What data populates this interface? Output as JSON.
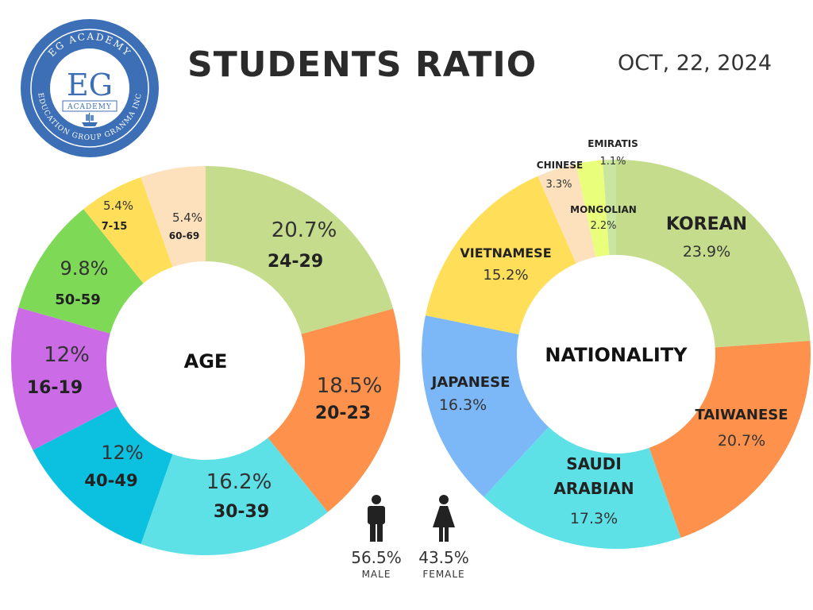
{
  "header": {
    "title": "STUDENTS RATIO",
    "date": "OCT, 22, 2024"
  },
  "logo": {
    "top_text": "EG ACADEMY",
    "monogram": "EG",
    "academy": "ACADEMY",
    "bottom_text": "EDUCATION GROUP GRANMA INC"
  },
  "gender": {
    "male": {
      "pct": "56.5%",
      "label": "MALE"
    },
    "female": {
      "pct": "43.5%",
      "label": "FEMALE"
    }
  },
  "chart_data": [
    {
      "type": "donut",
      "title": "AGE",
      "slices": [
        {
          "label": "24-29",
          "value": 20.7,
          "text": "20.7%",
          "color": "#c5dc8d"
        },
        {
          "label": "20-23",
          "value": 18.5,
          "text": "18.5%",
          "color": "#fe914b"
        },
        {
          "label": "30-39",
          "value": 16.2,
          "text": "16.2%",
          "color": "#5de1e6"
        },
        {
          "label": "40-49",
          "value": 12,
          "text": "12%",
          "color": "#0cc0df"
        },
        {
          "label": "16-19",
          "value": 12,
          "text": "12%",
          "color": "#cb6ce6"
        },
        {
          "label": "50-59",
          "value": 9.8,
          "text": "9.8%",
          "color": "#7ed957"
        },
        {
          "label": "7-15",
          "value": 5.4,
          "text": "5.4%",
          "color": "#ffde59"
        },
        {
          "label": "60-69",
          "value": 5.4,
          "text": "5.4%",
          "color": "#fde1bd"
        }
      ]
    },
    {
      "type": "donut",
      "title": "NATIONALITY",
      "slices": [
        {
          "label": "KOREAN",
          "value": 23.9,
          "text": "23.9%",
          "color": "#c5dc8d"
        },
        {
          "label": "TAIWANESE",
          "value": 20.7,
          "text": "20.7%",
          "color": "#fe914b"
        },
        {
          "label": "SAUDI ARABIAN",
          "value": 17.3,
          "text": "17.3%",
          "color": "#5de1e6"
        },
        {
          "label": "JAPANESE",
          "value": 16.3,
          "text": "16.3%",
          "color": "#7cb8f8"
        },
        {
          "label": "VIETNAMESE",
          "value": 15.2,
          "text": "15.2%",
          "color": "#ffde59"
        },
        {
          "label": "CHINESE",
          "value": 3.3,
          "text": "3.3%",
          "color": "#fde1bd"
        },
        {
          "label": "MONGOLIAN",
          "value": 2.2,
          "text": "2.2%",
          "color": "#e9fe7a"
        },
        {
          "label": "EMIRATIS",
          "value": 1.1,
          "text": "1.1%",
          "color": "#c9e6a1"
        }
      ]
    }
  ]
}
